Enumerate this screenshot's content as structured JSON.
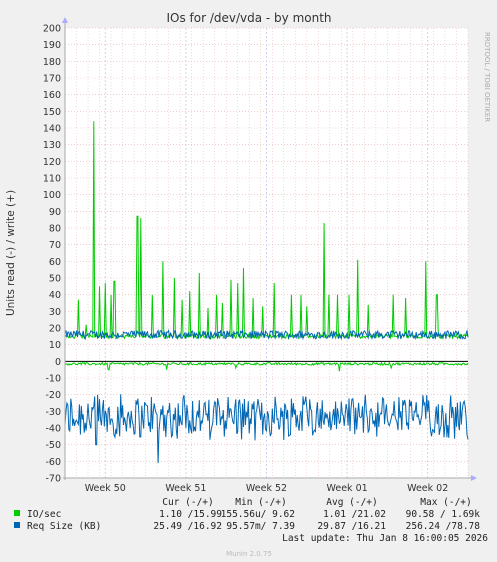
{
  "chart_data": {
    "type": "line",
    "title": "IOs for /dev/vda - by month",
    "ylabel": "Units read (-) / write (+)",
    "watermark": "RRDTOOL / TOBI OETIKER",
    "footer": "Munin 2.0.75",
    "ylim": [
      -70,
      200
    ],
    "y_ticks": [
      200,
      190,
      180,
      170,
      160,
      150,
      140,
      130,
      120,
      110,
      100,
      90,
      80,
      70,
      60,
      50,
      40,
      30,
      20,
      10,
      0,
      -10,
      -20,
      -30,
      -40,
      -50,
      -60,
      -70
    ],
    "x_range_days": [
      0,
      35
    ],
    "x_ticks": [
      {
        "label": "Week 50",
        "day": 3.5
      },
      {
        "label": "Week 51",
        "day": 10.5
      },
      {
        "label": "Week 52",
        "day": 17.5
      },
      {
        "label": "Week 01",
        "day": 24.5
      },
      {
        "label": "Week 02",
        "day": 31.5
      }
    ],
    "grid": true,
    "legend_placement": "bottom",
    "colors": {
      "io_sec": "#00cc00",
      "req_size": "#0066b3",
      "zero_line": "#000000",
      "grid_minor": "#e8b0b0",
      "grid_major": "#c8c8e8"
    },
    "series": [
      {
        "name": "IO/sec",
        "color": "#00cc00",
        "write_baseline": 15,
        "write_spikes": [
          {
            "day": 1.2,
            "value": 37
          },
          {
            "day": 1.8,
            "value": 22
          },
          {
            "day": 2.5,
            "value": 144
          },
          {
            "day": 3.0,
            "value": 45
          },
          {
            "day": 3.5,
            "value": 47
          },
          {
            "day": 4.0,
            "value": 40
          },
          {
            "day": 4.3,
            "value": 48
          },
          {
            "day": 6.3,
            "value": 87
          },
          {
            "day": 6.6,
            "value": 86
          },
          {
            "day": 7.6,
            "value": 40
          },
          {
            "day": 8.5,
            "value": 60
          },
          {
            "day": 9.5,
            "value": 50
          },
          {
            "day": 10.2,
            "value": 37
          },
          {
            "day": 10.8,
            "value": 42
          },
          {
            "day": 11.7,
            "value": 53
          },
          {
            "day": 12.4,
            "value": 32
          },
          {
            "day": 13.2,
            "value": 40
          },
          {
            "day": 13.7,
            "value": 35
          },
          {
            "day": 14.4,
            "value": 49
          },
          {
            "day": 15.0,
            "value": 47
          },
          {
            "day": 15.5,
            "value": 56
          },
          {
            "day": 16.3,
            "value": 38
          },
          {
            "day": 17.2,
            "value": 33
          },
          {
            "day": 18.2,
            "value": 47
          },
          {
            "day": 19.7,
            "value": 40
          },
          {
            "day": 20.5,
            "value": 40
          },
          {
            "day": 21.0,
            "value": 33
          },
          {
            "day": 22.5,
            "value": 83
          },
          {
            "day": 22.9,
            "value": 40
          },
          {
            "day": 23.7,
            "value": 40
          },
          {
            "day": 24.7,
            "value": 40
          },
          {
            "day": 25.4,
            "value": 61
          },
          {
            "day": 26.3,
            "value": 34
          },
          {
            "day": 28.5,
            "value": 40
          },
          {
            "day": 29.6,
            "value": 38
          },
          {
            "day": 31.3,
            "value": 60
          },
          {
            "day": 32.3,
            "value": 40
          }
        ],
        "read_baseline": -1.5,
        "read_dips": [
          {
            "day": 3.8,
            "value": -5
          },
          {
            "day": 8.8,
            "value": -5
          },
          {
            "day": 14.8,
            "value": -4
          },
          {
            "day": 23.8,
            "value": -6
          },
          {
            "day": 28.3,
            "value": -4
          }
        ]
      },
      {
        "name": "Req Size (KB)",
        "color": "#0066b3",
        "write_baseline": 16,
        "write_range": [
          12,
          21
        ],
        "read_baseline": -30,
        "read_range": [
          -62,
          -18
        ],
        "read_extremes": [
          {
            "day": 8.1,
            "value": -61
          },
          {
            "day": 2.7,
            "value": -50
          },
          {
            "day": 12.6,
            "value": -47
          },
          {
            "day": 31.8,
            "value": -45
          }
        ]
      }
    ],
    "legend": {
      "headers": [
        "Cur (-/+)",
        "Min (-/+)",
        "Avg (-/+)",
        "Max (-/+)"
      ],
      "rows": [
        {
          "label": "IO/sec",
          "color": "#00cc00",
          "cur": "1.10 /15.99",
          "min": "155.56u/ 9.62",
          "avg": "1.01 /21.02",
          "max": "90.58 / 1.69k"
        },
        {
          "label": "Req Size (KB)",
          "color": "#0066b3",
          "cur": "25.49 /16.92",
          "min": "95.57m/ 7.39",
          "avg": "29.87 /16.21",
          "max": "256.24 /78.78"
        }
      ]
    },
    "last_update": "Last update: Thu Jan  8 16:00:05 2026"
  }
}
